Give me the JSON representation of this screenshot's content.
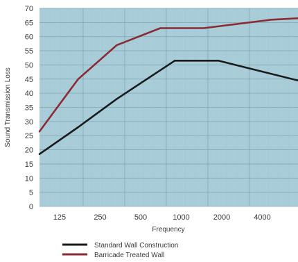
{
  "chart_data": {
    "type": "line",
    "title": "",
    "xlabel": "Frequency",
    "ylabel": "Sound Transmission Loss",
    "categories": [
      "125",
      "250",
      "500",
      "1000",
      "2000",
      "4000"
    ],
    "ylim": [
      0,
      70
    ],
    "yticks": [
      0,
      5,
      10,
      15,
      20,
      25,
      30,
      35,
      40,
      45,
      50,
      55,
      60,
      65,
      70
    ],
    "grid": true,
    "legend_position": "bottom",
    "plot_background": "#a9cdd8",
    "series": [
      {
        "name": "Standard Wall Construction",
        "color": "#1a1a1a",
        "x": [
          0,
          0.8,
          1.6,
          2.8,
          3.7,
          5.35
        ],
        "values": [
          18.5,
          28,
          38,
          51.5,
          51.5,
          44.5
        ]
      },
      {
        "name": "Barricade Treated Wall",
        "color": "#8a2a35",
        "x": [
          0,
          0.8,
          1.6,
          2.5,
          3.4,
          4.8,
          5.35
        ],
        "values": [
          26.5,
          45,
          57,
          63,
          63,
          66,
          66.5
        ]
      }
    ]
  }
}
